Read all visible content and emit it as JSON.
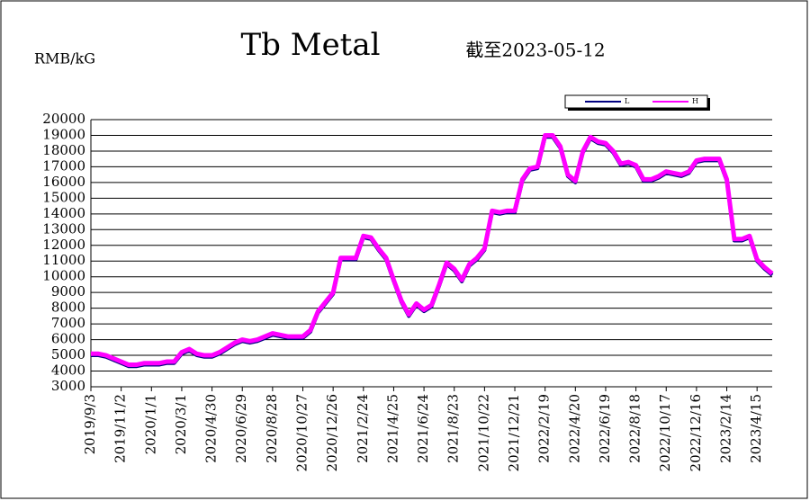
{
  "chart_data": {
    "type": "line",
    "title": "Tb Metal",
    "subtitle": "截至2023-05-12",
    "y_label": "RMB/kG",
    "categories": [
      "2019/9/3",
      null,
      null,
      null,
      "2019/11/2",
      null,
      null,
      null,
      "2020/1/1",
      null,
      null,
      null,
      "2020/3/1",
      null,
      null,
      null,
      "2020/4/30",
      null,
      null,
      null,
      "2020/6/29",
      null,
      null,
      null,
      "2020/8/28",
      null,
      null,
      null,
      "2020/10/27",
      null,
      null,
      null,
      "2020/12/26",
      null,
      null,
      null,
      "2021/2/24",
      null,
      null,
      null,
      "2021/4/25",
      null,
      null,
      null,
      "2021/6/24",
      null,
      null,
      null,
      "2021/8/23",
      null,
      null,
      null,
      "2021/10/22",
      null,
      null,
      null,
      "2021/12/21",
      null,
      null,
      null,
      "2022/2/19",
      null,
      null,
      null,
      "2022/4/20",
      null,
      null,
      null,
      "2022/6/19",
      null,
      null,
      null,
      "2022/8/18",
      null,
      null,
      null,
      "2022/10/17",
      null,
      null,
      null,
      "2022/12/16",
      null,
      null,
      null,
      "2023/2/14",
      null,
      null,
      null,
      "2023/4/15",
      null,
      null
    ],
    "series": [
      {
        "name": "L",
        "color": "#000080",
        "values": [
          5000,
          5000,
          4900,
          4700,
          4500,
          4300,
          4300,
          4400,
          4400,
          4400,
          4500,
          4500,
          5100,
          5300,
          5000,
          4900,
          4900,
          5100,
          5400,
          5700,
          5900,
          5800,
          5900,
          6100,
          6300,
          6200,
          6100,
          6100,
          6100,
          6500,
          7700,
          8300,
          8900,
          11100,
          11100,
          11100,
          12500,
          12400,
          11700,
          11100,
          9700,
          8400,
          7500,
          8200,
          7800,
          8100,
          9400,
          10800,
          10400,
          9700,
          10700,
          11100,
          11700,
          14100,
          14000,
          14100,
          14100,
          16100,
          16800,
          16900,
          18900,
          18900,
          18200,
          16400,
          16000,
          17900,
          18800,
          18500,
          18400,
          17900,
          17100,
          17200,
          17000,
          16100,
          16100,
          16300,
          16600,
          16500,
          16400,
          16600,
          17300,
          17400,
          17400,
          17400,
          16100,
          12300,
          12300,
          12500,
          11000,
          10500,
          10100
        ]
      },
      {
        "name": "H",
        "color": "#ff00ff",
        "values": [
          5100,
          5100,
          5000,
          4800,
          4600,
          4400,
          4400,
          4500,
          4500,
          4500,
          4600,
          4600,
          5200,
          5400,
          5100,
          5000,
          5000,
          5200,
          5500,
          5800,
          6000,
          5900,
          6000,
          6200,
          6400,
          6300,
          6200,
          6200,
          6200,
          6600,
          7800,
          8400,
          9000,
          11200,
          11200,
          11200,
          12600,
          12500,
          11800,
          11200,
          9800,
          8500,
          7600,
          8300,
          7900,
          8200,
          9500,
          10900,
          10500,
          9800,
          10800,
          11200,
          11800,
          14200,
          14100,
          14200,
          14200,
          16200,
          16900,
          17000,
          19000,
          19000,
          18300,
          16500,
          16100,
          18000,
          18900,
          18600,
          18500,
          18000,
          17200,
          17300,
          17100,
          16200,
          16200,
          16400,
          16700,
          16600,
          16500,
          16700,
          17400,
          17500,
          17500,
          17500,
          16200,
          12400,
          12400,
          12600,
          11100,
          10600,
          10200
        ]
      }
    ],
    "ylim": [
      3000,
      20000
    ],
    "yticks": [
      3000,
      4000,
      5000,
      6000,
      7000,
      8000,
      9000,
      10000,
      11000,
      12000,
      13000,
      14000,
      15000,
      16000,
      17000,
      18000,
      19000,
      20000
    ],
    "grid": true
  }
}
